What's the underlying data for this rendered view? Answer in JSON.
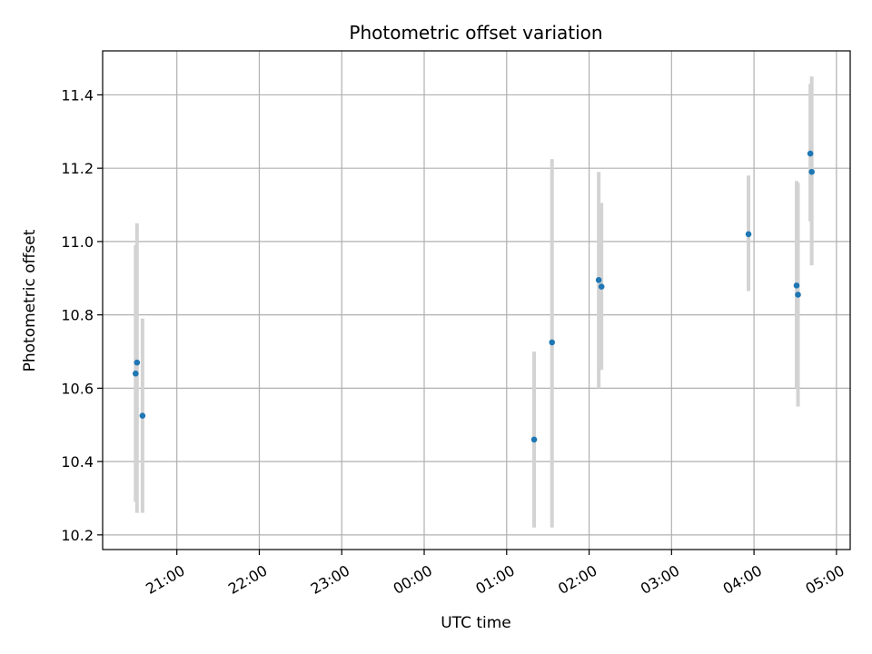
{
  "chart_data": {
    "type": "scatter",
    "title": "Photometric offset variation",
    "xlabel": "UTC time",
    "ylabel": "Photometric offset",
    "x_axis_type": "time",
    "xlim": [
      "20:06",
      "05:10"
    ],
    "ylim": [
      10.16,
      11.52
    ],
    "grid": true,
    "x_ticks": [
      {
        "time": "21:00",
        "label": "21:00"
      },
      {
        "time": "22:00",
        "label": "22:00"
      },
      {
        "time": "23:00",
        "label": "23:00"
      },
      {
        "time": "00:00",
        "label": "00:00"
      },
      {
        "time": "01:00",
        "label": "01:00"
      },
      {
        "time": "02:00",
        "label": "02:00"
      },
      {
        "time": "03:00",
        "label": "03:00"
      },
      {
        "time": "04:00",
        "label": "04:00"
      },
      {
        "time": "05:00",
        "label": "05:00"
      }
    ],
    "y_ticks": [
      {
        "value": 10.2,
        "label": "10.2"
      },
      {
        "value": 10.4,
        "label": "10.4"
      },
      {
        "value": 10.6,
        "label": "10.6"
      },
      {
        "value": 10.8,
        "label": "10.8"
      },
      {
        "value": 11.0,
        "label": "11.0"
      },
      {
        "value": 11.2,
        "label": "11.2"
      },
      {
        "value": 11.4,
        "label": "11.4"
      }
    ],
    "marker_color": "#1f77b4",
    "errorbar_color": "#d3d3d3",
    "points": [
      {
        "time": "20:30",
        "y": 10.64,
        "yerr_low": 10.29,
        "yerr_high": 10.99
      },
      {
        "time": "20:31",
        "y": 10.67,
        "yerr_low": 10.26,
        "yerr_high": 11.05
      },
      {
        "time": "20:35",
        "y": 10.525,
        "yerr_low": 10.26,
        "yerr_high": 10.79
      },
      {
        "time": "01:20",
        "y": 10.46,
        "yerr_low": 10.22,
        "yerr_high": 10.7
      },
      {
        "time": "01:33",
        "y": 10.725,
        "yerr_low": 10.22,
        "yerr_high": 11.225
      },
      {
        "time": "02:07",
        "y": 10.895,
        "yerr_low": 10.6,
        "yerr_high": 11.19
      },
      {
        "time": "02:09",
        "y": 10.877,
        "yerr_low": 10.65,
        "yerr_high": 11.105
      },
      {
        "time": "03:56",
        "y": 11.02,
        "yerr_low": 10.865,
        "yerr_high": 11.18
      },
      {
        "time": "04:31",
        "y": 10.88,
        "yerr_low": 10.6,
        "yerr_high": 11.165
      },
      {
        "time": "04:32",
        "y": 10.855,
        "yerr_low": 10.55,
        "yerr_high": 11.16
      },
      {
        "time": "04:41",
        "y": 11.24,
        "yerr_low": 11.055,
        "yerr_high": 11.43
      },
      {
        "time": "04:42",
        "y": 11.19,
        "yerr_low": 10.935,
        "yerr_high": 11.45
      }
    ]
  }
}
